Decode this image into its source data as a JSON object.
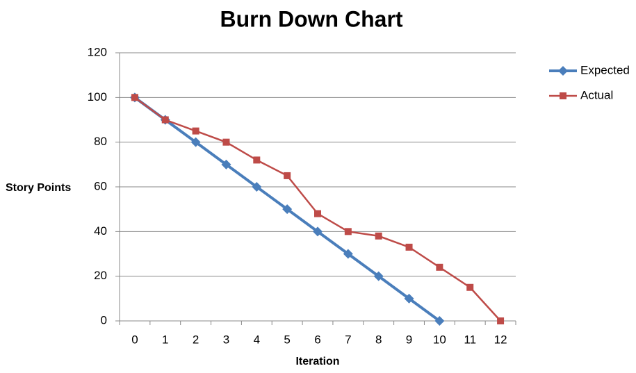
{
  "chart_data": {
    "type": "line",
    "title": "Burn Down Chart",
    "x_label": "Iteration",
    "y_label": "Story Points",
    "categories": [
      0,
      1,
      2,
      3,
      4,
      5,
      6,
      7,
      8,
      9,
      10,
      11,
      12
    ],
    "series": [
      {
        "name": "Expected",
        "color": "#4a7ebb",
        "marker": "diamond",
        "values": [
          100,
          90,
          80,
          70,
          60,
          50,
          40,
          30,
          20,
          10,
          0,
          null,
          null
        ]
      },
      {
        "name": "Actual",
        "color": "#be4b48",
        "marker": "square",
        "values": [
          100,
          90,
          85,
          80,
          72,
          65,
          48,
          40,
          38,
          33,
          24,
          15,
          0
        ]
      }
    ],
    "ylim": [
      0,
      120
    ],
    "yticks": [
      0,
      20,
      40,
      60,
      80,
      100,
      120
    ],
    "grid": true,
    "legend": "right"
  }
}
